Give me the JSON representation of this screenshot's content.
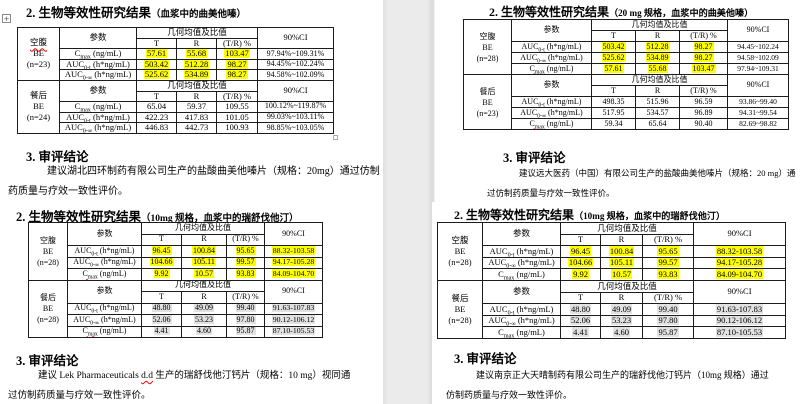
{
  "colors": {
    "highlight_yellow": "#ffff00",
    "highlight_gray": "#e2e2e2",
    "squiggle_red": "#ff0000",
    "gutter_gray": "#ebebeb"
  },
  "panes": [
    {
      "heading": "2. 生物等效性研究结果",
      "heading_note": "（血浆中的曲美他嗪）",
      "table": {
        "param_header": "参数",
        "geo_header": "几何均值及比值",
        "sub_cols": [
          "T",
          "R",
          "(T/R) %"
        ],
        "ci_header": "90%CI",
        "blocks": [
          {
            "group_lines": [
              "空腹",
              "BE",
              "(n=23)"
            ],
            "group_sq": 0,
            "rows": [
              {
                "p_base": "C",
                "p_sub": "max",
                "p_unit": " (ng/mL)",
                "sq": true,
                "vals": [
                  "57.61",
                  "55.68",
                  "103.47"
                ],
                "hl": "y",
                "ci": "97.94%~109.31%",
                "ci_hl": null
              },
              {
                "p_base": "AUC",
                "p_sub": "0-t",
                "p_unit": " (h*ng/mL)",
                "sq": false,
                "vals": [
                  "503.42",
                  "512.28",
                  "98.27"
                ],
                "hl": "y",
                "ci": "94.45%~102.24%",
                "ci_hl": null
              },
              {
                "p_base": "AUC",
                "p_sub": "0-∞",
                "p_unit": " (h*ng/mL)",
                "sq": false,
                "vals": [
                  "525.62",
                  "534.89",
                  "98.27"
                ],
                "hl": "y",
                "ci": "94.58%~102.09%",
                "ci_hl": null
              }
            ]
          },
          {
            "group_lines": [
              "餐后",
              "BE",
              "(n=24)"
            ],
            "group_sq": -1,
            "rows": [
              {
                "p_base": "C",
                "p_sub": "max",
                "p_unit": " (ng/mL)",
                "sq": true,
                "vals": [
                  "65.04",
                  "59.37",
                  "109.55"
                ],
                "hl": null,
                "ci": "100.12%~119.87%",
                "ci_hl": null
              },
              {
                "p_base": "AUC",
                "p_sub": "0-t",
                "p_unit": " (h*ng/mL)",
                "sq": false,
                "vals": [
                  "422.23",
                  "417.83",
                  "101.05"
                ],
                "hl": null,
                "ci": "99.03%~103.11%",
                "ci_hl": null
              },
              {
                "p_base": "AUC",
                "p_sub": "0-∞",
                "p_unit": " (h*ng/mL)",
                "sq": false,
                "vals": [
                  "446.83",
                  "442.73",
                  "100.93"
                ],
                "hl": null,
                "ci": "98.85%~103.05%",
                "ci_hl": null
              }
            ]
          }
        ]
      },
      "concl_title": "3. 审评结论",
      "concl_lines": [
        {
          "indent": true,
          "segs": [
            {
              "t": "建议湖北四环制药有限公司生产的盐酸曲美他嗪片（规格：20mg）通过仿制"
            }
          ]
        },
        {
          "indent": false,
          "segs": [
            {
              "t": "药质量与疗效一致性评价。"
            }
          ]
        }
      ]
    },
    {
      "heading": "2. 生物等效性研究结果",
      "heading_note": "（20 mg 规格，血浆中的曲美他嗪）",
      "table": {
        "param_header": "参数",
        "geo_header": "几何均值及比值",
        "sub_cols": [
          "T",
          "R",
          "(T/R) %"
        ],
        "ci_header": "90%CI",
        "blocks": [
          {
            "group_lines": [
              "空腹",
              "BE",
              "(n=28)"
            ],
            "group_sq": -1,
            "rows": [
              {
                "p_base": "AUC",
                "p_sub": "0-t",
                "p_unit": " (h*ng/mL)",
                "sq": false,
                "vals": [
                  "503.42",
                  "512.28",
                  "98.27"
                ],
                "hl": "y",
                "ci": "94.45~102.24",
                "ci_hl": null
              },
              {
                "p_base": "AUC",
                "p_sub": "0-∞",
                "p_unit": " (h*ng/mL)",
                "sq": false,
                "vals": [
                  "525.62",
                  "534.89",
                  "98.27"
                ],
                "hl": "y",
                "ci": "94.58~102.09",
                "ci_hl": null
              },
              {
                "p_base": "C",
                "p_sub": "max",
                "p_unit": " (ng/mL)",
                "sq": true,
                "vals": [
                  "57.61",
                  "55.68",
                  "103.47"
                ],
                "hl": "y",
                "ci": "97.94~109.31",
                "ci_hl": null
              }
            ]
          },
          {
            "group_lines": [
              "餐后",
              "BE",
              "(n=23)"
            ],
            "group_sq": -1,
            "rows": [
              {
                "p_base": "AUC",
                "p_sub": "0-t",
                "p_unit": " (h*ng/mL)",
                "sq": false,
                "vals": [
                  "498.35",
                  "515.96",
                  "96.59"
                ],
                "hl": null,
                "ci": "93.86~99.40",
                "ci_hl": null
              },
              {
                "p_base": "AUC",
                "p_sub": "0-∞",
                "p_unit": " (h*ng/mL)",
                "sq": false,
                "vals": [
                  "517.95",
                  "534.57",
                  "96.89"
                ],
                "hl": null,
                "ci": "94.31~99.54",
                "ci_hl": null
              },
              {
                "p_base": "C",
                "p_sub": "max",
                "p_unit": " (ng/mL)",
                "sq": true,
                "vals": [
                  "59.34",
                  "65.64",
                  "90.40"
                ],
                "hl": null,
                "ci": "82.69~98.82",
                "ci_hl": null
              }
            ]
          }
        ]
      },
      "concl_title": "3. 审评结论",
      "concl_lines": [
        {
          "indent": true,
          "segs": [
            {
              "t": "建议远大医药（中国）有限公司生产的盐酸曲美他嗪片（规格：20 mg）通"
            }
          ]
        },
        {
          "indent": false,
          "segs": [
            {
              "t": "过仿制药质量与疗效一致性评价。"
            }
          ]
        }
      ]
    },
    {
      "heading": "2. 生物等效性研究结果",
      "heading_note": "（10mg 规格，血浆中的瑞舒伐他汀）",
      "table": {
        "param_header": "参数",
        "geo_header": "几何均值及比值",
        "sub_cols": [
          "T",
          "R",
          "(T/R) %"
        ],
        "ci_header": "90%CI",
        "blocks": [
          {
            "group_lines": [
              "空腹",
              "BE",
              "(n=28)"
            ],
            "group_sq": -1,
            "rows": [
              {
                "p_base": "AUC",
                "p_sub": "0-t",
                "p_unit": " (h*ng/mL)",
                "sq": false,
                "vals": [
                  "96.45",
                  "100.84",
                  "95.65"
                ],
                "hl": "y",
                "ci": "88.32-103.58",
                "ci_hl": "y"
              },
              {
                "p_base": "AUC",
                "p_sub": "0-∞",
                "p_unit": " (h*ng/mL)",
                "sq": false,
                "vals": [
                  "104.66",
                  "105.11",
                  "99.57"
                ],
                "hl": "y",
                "ci": "94.17-105.28",
                "ci_hl": "y"
              },
              {
                "p_base": "C",
                "p_sub": "max",
                "p_unit": " (ng/mL)",
                "sq": true,
                "vals": [
                  "9.92",
                  "10.57",
                  "93.83"
                ],
                "hl": "y",
                "ci": "84.09-104.70",
                "ci_hl": "y"
              }
            ]
          },
          {
            "group_lines": [
              "餐后",
              "BE",
              "(n=28)"
            ],
            "group_sq": -1,
            "rows": [
              {
                "p_base": "AUC",
                "p_sub": "0-t",
                "p_unit": " (h*ng/mL)",
                "sq": false,
                "vals": [
                  "48.80",
                  "49.09",
                  "99.40"
                ],
                "hl": "g",
                "ci": "91.63-107.83",
                "ci_hl": "g"
              },
              {
                "p_base": "AUC",
                "p_sub": "0-∞",
                "p_unit": " (h*ng/mL)",
                "sq": false,
                "vals": [
                  "52.06",
                  "53.23",
                  "97.80"
                ],
                "hl": "g",
                "ci": "90.12-106.12",
                "ci_hl": "g"
              },
              {
                "p_base": "C",
                "p_sub": "max",
                "p_unit": " (ng/mL)",
                "sq": true,
                "vals": [
                  "4.41",
                  "4.60",
                  "95.87"
                ],
                "hl": "g",
                "ci": "87.10-105.53",
                "ci_hl": "g"
              }
            ]
          }
        ]
      },
      "concl_title": "3. 审评结论",
      "concl_lines": [
        {
          "indent": true,
          "segs": [
            {
              "t": "建议 Lek Pharmaceuticals "
            },
            {
              "t": "d.d",
              "sq": true
            },
            {
              "t": " 生产的瑞舒伐他汀钙片（规格：10 mg）视同通"
            }
          ]
        },
        {
          "indent": false,
          "segs": [
            {
              "t": "过仿制药质量与疗效一致性评价。"
            }
          ]
        }
      ]
    },
    {
      "heading": "2. 生物等效性研究结果",
      "heading_note": "（10mg 规格，血浆中的瑞舒伐他汀）",
      "table": {
        "param_header": "参数",
        "geo_header": "几何均值及比值",
        "sub_cols": [
          "T",
          "R",
          "(T/R) %"
        ],
        "ci_header": "90%CI",
        "blocks": [
          {
            "group_lines": [
              "空腹",
              "BE",
              "(n=28)"
            ],
            "group_sq": -1,
            "rows": [
              {
                "p_base": "AUC",
                "p_sub": "0-t",
                "p_unit": " (h*ng/mL)",
                "sq": false,
                "vals": [
                  "96.45",
                  "100.84",
                  "95.65"
                ],
                "hl": "y",
                "ci": "88.32-103.58",
                "ci_hl": "y"
              },
              {
                "p_base": "AUC",
                "p_sub": "0-∞",
                "p_unit": " (h*ng/mL)",
                "sq": false,
                "vals": [
                  "104.66",
                  "105.11",
                  "99.57"
                ],
                "hl": "y",
                "ci": "94.17-105.28",
                "ci_hl": "y"
              },
              {
                "p_base": "C",
                "p_sub": "max",
                "p_unit": " (ng/mL)",
                "sq": false,
                "vals": [
                  "9.92",
                  "10.57",
                  "93.83"
                ],
                "hl": "y",
                "ci": "84.09-104.70",
                "ci_hl": "y"
              }
            ]
          },
          {
            "group_lines": [
              "餐后",
              "BE",
              "(n=28)"
            ],
            "group_sq": -1,
            "rows": [
              {
                "p_base": "AUC",
                "p_sub": "0-t",
                "p_unit": " (h*ng/mL)",
                "sq": false,
                "vals": [
                  "48.80",
                  "49.09",
                  "99.40"
                ],
                "hl": "g",
                "ci": "91.63-107.83",
                "ci_hl": "g"
              },
              {
                "p_base": "AUC",
                "p_sub": "0-∞",
                "p_unit": " (h*ng/mL)",
                "sq": false,
                "vals": [
                  "52.06",
                  "53.23",
                  "97.80"
                ],
                "hl": "g",
                "ci": "90.12-106.12",
                "ci_hl": "g"
              },
              {
                "p_base": "C",
                "p_sub": "max",
                "p_unit": " (ng/mL)",
                "sq": true,
                "vals": [
                  "4.41",
                  "4.60",
                  "95.87"
                ],
                "hl": "g",
                "ci": "87.10-105.53",
                "ci_hl": "g"
              }
            ]
          }
        ]
      },
      "concl_title": "3. 审评结论",
      "concl_lines": [
        {
          "indent": true,
          "segs": [
            {
              "t": "建议南京正大天晴制药有限公司生产的瑞舒伐他汀钙片（10mg 规格）通过"
            }
          ]
        },
        {
          "indent": false,
          "segs": [
            {
              "t": "仿制药质量与疗效一致性评价。"
            }
          ]
        }
      ]
    }
  ]
}
